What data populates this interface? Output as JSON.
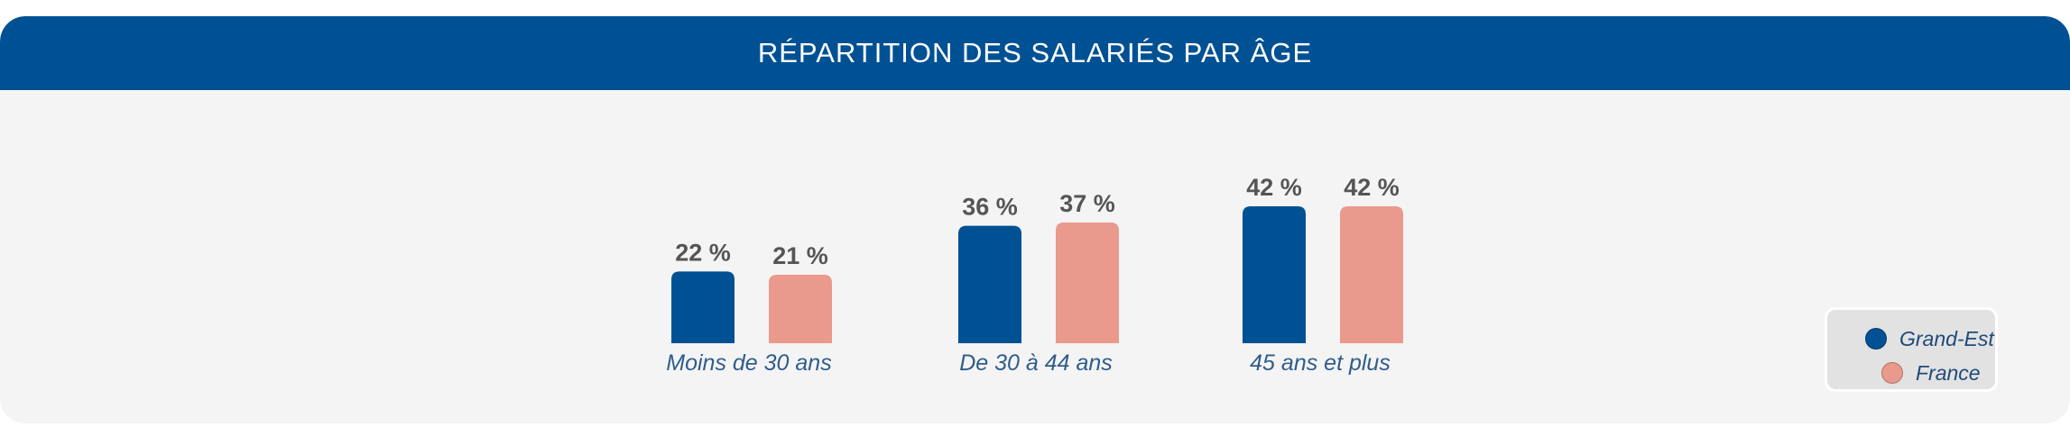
{
  "header": {
    "title": "RÉPARTITION DES SALARIÉS PAR ÂGE"
  },
  "colors": {
    "grand_est": "#005193",
    "france": "#e99a8c",
    "header": "#005193",
    "panel": "#f4f4f4",
    "value_text": "#555555",
    "category_text": "#2f5d8c"
  },
  "chart_data": {
    "type": "bar",
    "title": "RÉPARTITION DES SALARIÉS PAR ÂGE",
    "categories": [
      "Moins de 30 ans",
      "De 30 à 44 ans",
      "45 ans et plus"
    ],
    "series": [
      {
        "name": "Grand-Est",
        "values": [
          22,
          36,
          42
        ],
        "labels": [
          "22 %",
          "36 %",
          "42 %"
        ]
      },
      {
        "name": "France",
        "values": [
          21,
          37,
          42
        ],
        "labels": [
          "21 %",
          "37 %",
          "42 %"
        ]
      }
    ],
    "xlabel": "",
    "ylabel": "",
    "ylim": [
      0,
      100
    ],
    "grid": false,
    "legend_position": "bottom-right"
  },
  "legend": {
    "items": [
      {
        "label": "Grand-Est",
        "color": "#005193"
      },
      {
        "label": "France",
        "color": "#e99a8c"
      }
    ]
  }
}
